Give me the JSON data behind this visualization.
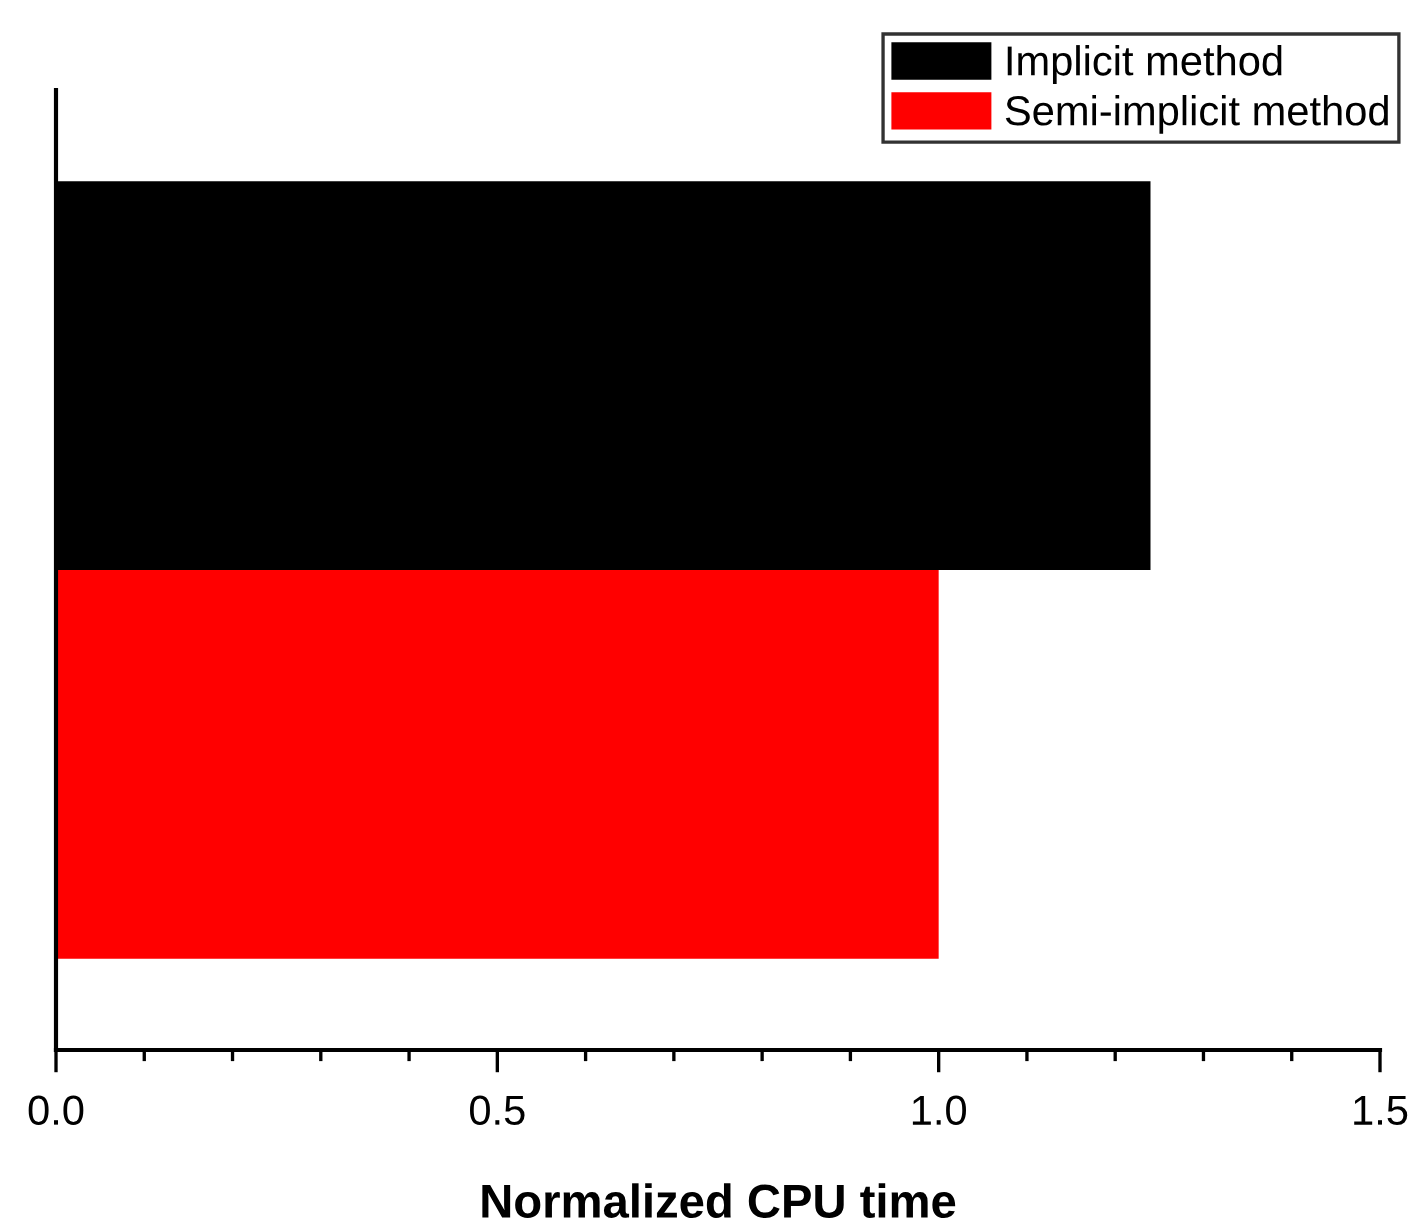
{
  "chart_data": {
    "type": "bar",
    "orientation": "horizontal",
    "xlabel": "Normalized CPU time",
    "categories": [
      null
    ],
    "series": [
      {
        "name": "Implicit method",
        "color": "#000000",
        "values": [
          1.24
        ]
      },
      {
        "name": "Semi-implicit method",
        "color": "#ff0000",
        "values": [
          1.0
        ]
      }
    ],
    "xlim": [
      0,
      1.5
    ],
    "xticks": [
      {
        "value": 0,
        "label": "0.0"
      },
      {
        "value": 0.1,
        "label": null
      },
      {
        "value": 0.2,
        "label": null
      },
      {
        "value": 0.3,
        "label": null
      },
      {
        "value": 0.4,
        "label": null
      },
      {
        "value": 0.5,
        "label": "0.5"
      },
      {
        "value": 0.6,
        "label": null
      },
      {
        "value": 0.7,
        "label": null
      },
      {
        "value": 0.8,
        "label": null
      },
      {
        "value": 0.9,
        "label": null
      },
      {
        "value": 1.0,
        "label": "1.0"
      },
      {
        "value": 1.1,
        "label": null
      },
      {
        "value": 1.2,
        "label": null
      },
      {
        "value": 1.3,
        "label": null
      },
      {
        "value": 1.4,
        "label": null
      },
      {
        "value": 1.5,
        "label": "1.5"
      }
    ],
    "legend": "top right",
    "grid": false
  }
}
